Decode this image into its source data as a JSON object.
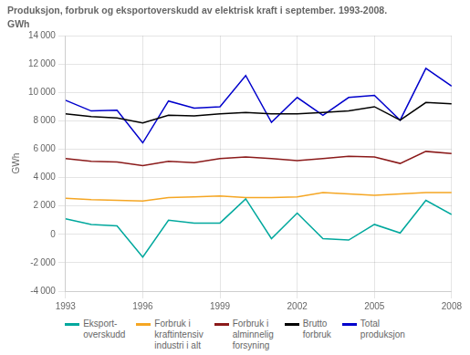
{
  "chart_data": {
    "type": "line",
    "title": "Produksjon, forbruk og eksportoverskudd av elektrisk kraft i september. 1993-2008.",
    "subtitle": "GWh",
    "ylabel": "GWh",
    "x": [
      1993,
      1994,
      1995,
      1996,
      1997,
      1998,
      1999,
      2000,
      2001,
      2002,
      2003,
      2004,
      2005,
      2006,
      2007,
      2008
    ],
    "xlim": [
      1993,
      2008
    ],
    "xticks": [
      1993,
      1996,
      1999,
      2002,
      2005,
      2008
    ],
    "ylim": [
      -4000,
      14000
    ],
    "yticks": [
      {
        "value": -4000,
        "label": "-4 000"
      },
      {
        "value": -2000,
        "label": "-2 000"
      },
      0,
      {
        "value": 2000,
        "label": "2 000"
      },
      {
        "value": 4000,
        "label": "4 000"
      },
      {
        "value": 6000,
        "label": "6 000"
      },
      {
        "value": 8000,
        "label": "8 000"
      },
      {
        "value": 10000,
        "label": "10 000"
      },
      {
        "value": 12000,
        "label": "12 000"
      },
      {
        "value": 14000,
        "label": "14 000"
      }
    ],
    "grid": true,
    "legend": "bottom",
    "series": [
      {
        "name": "Eksport-\noverskudd",
        "color": "#00A89D",
        "values": [
          1100,
          700,
          600,
          -1600,
          1000,
          800,
          800,
          2500,
          -300,
          1500,
          -300,
          -400,
          700,
          100,
          2400,
          1400
        ]
      },
      {
        "name": "Forbruk i\nkraftintensiv\nindustri i alt",
        "color": "#F5A623",
        "values": [
          2550,
          2450,
          2400,
          2350,
          2600,
          2650,
          2700,
          2600,
          2600,
          2650,
          2950,
          2850,
          2750,
          2850,
          2950,
          2950
        ]
      },
      {
        "name": "Forbruk i\nalminnelig\nforsyning",
        "color": "#8B1A1A",
        "values": [
          5350,
          5150,
          5100,
          4850,
          5150,
          5050,
          5350,
          5450,
          5350,
          5200,
          5350,
          5500,
          5450,
          5000,
          5850,
          5700
        ]
      },
      {
        "name": "Brutto\nforbruk",
        "color": "#000000",
        "values": [
          8500,
          8300,
          8200,
          7850,
          8400,
          8350,
          8500,
          8600,
          8500,
          8500,
          8600,
          8700,
          9000,
          8050,
          9300,
          9200
        ]
      },
      {
        "name": "Total\nproduksjon",
        "color": "#0000CC",
        "values": [
          9450,
          8700,
          8750,
          6450,
          9400,
          8900,
          9000,
          11200,
          7900,
          9650,
          8400,
          9650,
          9800,
          8050,
          11700,
          10450
        ]
      }
    ]
  }
}
